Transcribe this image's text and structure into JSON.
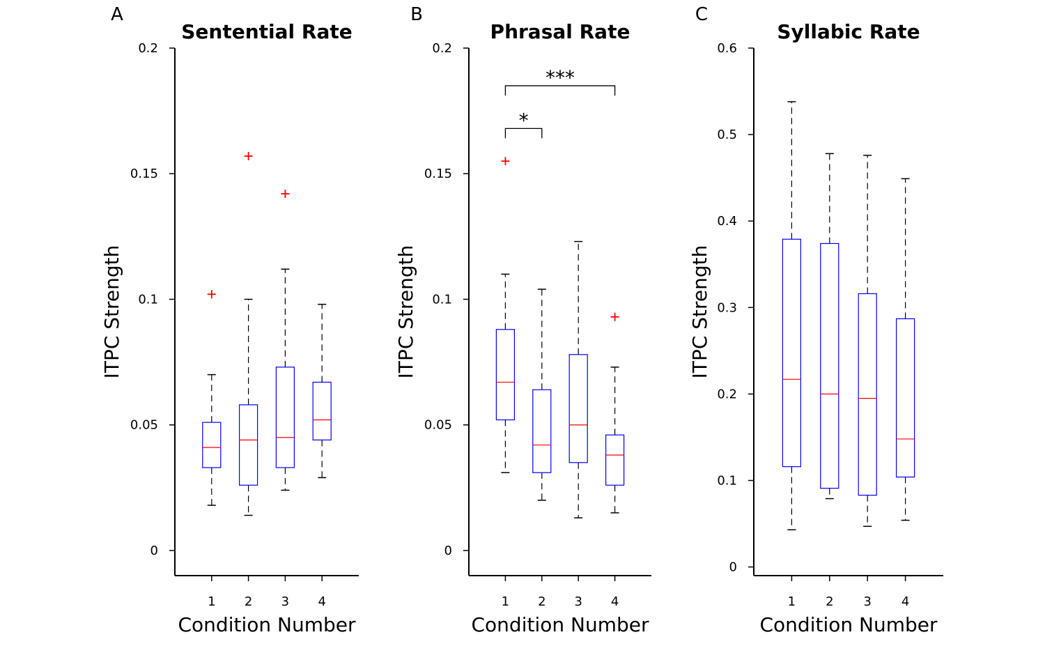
{
  "chart_data": [
    {
      "type": "box",
      "panel_letter": "A",
      "title": "Sentential Rate",
      "xlabel": "Condition Number",
      "ylabel": "ITPC Strength",
      "categories": [
        "1",
        "2",
        "3",
        "4"
      ],
      "ylim": [
        -0.01,
        0.2
      ],
      "yticks": [
        0,
        0.05,
        0.1,
        0.15,
        0.2
      ],
      "ytick_labels": [
        "0",
        "0.05",
        "0.1",
        "0.15",
        "0.2"
      ],
      "boxes": [
        {
          "whisker_low": 0.018,
          "q1": 0.033,
          "median": 0.041,
          "q3": 0.051,
          "whisker_high": 0.07,
          "outliers": [
            0.102
          ]
        },
        {
          "whisker_low": 0.014,
          "q1": 0.026,
          "median": 0.044,
          "q3": 0.058,
          "whisker_high": 0.1,
          "outliers": [
            0.157
          ]
        },
        {
          "whisker_low": 0.024,
          "q1": 0.033,
          "median": 0.045,
          "q3": 0.073,
          "whisker_high": 0.112,
          "outliers": [
            0.142
          ]
        },
        {
          "whisker_low": 0.029,
          "q1": 0.044,
          "median": 0.052,
          "q3": 0.067,
          "whisker_high": 0.098,
          "outliers": []
        }
      ],
      "significance": []
    },
    {
      "type": "box",
      "panel_letter": "B",
      "title": "Phrasal Rate",
      "xlabel": "Condition Number",
      "ylabel": "ITPC Strength",
      "categories": [
        "1",
        "2",
        "3",
        "4"
      ],
      "ylim": [
        -0.01,
        0.2
      ],
      "yticks": [
        0,
        0.05,
        0.1,
        0.15,
        0.2
      ],
      "ytick_labels": [
        "0",
        "0.05",
        "0.1",
        "0.15",
        "0.2"
      ],
      "boxes": [
        {
          "whisker_low": 0.031,
          "q1": 0.052,
          "median": 0.067,
          "q3": 0.088,
          "whisker_high": 0.11,
          "outliers": [
            0.155
          ]
        },
        {
          "whisker_low": 0.02,
          "q1": 0.031,
          "median": 0.042,
          "q3": 0.064,
          "whisker_high": 0.104,
          "outliers": []
        },
        {
          "whisker_low": 0.013,
          "q1": 0.035,
          "median": 0.05,
          "q3": 0.078,
          "whisker_high": 0.123,
          "outliers": []
        },
        {
          "whisker_low": 0.015,
          "q1": 0.026,
          "median": 0.038,
          "q3": 0.046,
          "whisker_high": 0.073,
          "outliers": [
            0.093
          ]
        }
      ],
      "significance": [
        {
          "from": 1,
          "to": 4,
          "label": "***",
          "y": 0.185
        },
        {
          "from": 1,
          "to": 2,
          "label": "*",
          "y": 0.168
        }
      ]
    },
    {
      "type": "box",
      "panel_letter": "C",
      "title": "Syllabic Rate",
      "xlabel": "Condition Number",
      "ylabel": "ITPC Strength",
      "categories": [
        "1",
        "2",
        "3",
        "4"
      ],
      "ylim": [
        -0.01,
        0.6
      ],
      "yticks": [
        0,
        0.1,
        0.2,
        0.3,
        0.4,
        0.5,
        0.6
      ],
      "ytick_labels": [
        "0",
        "0.1",
        "0.2",
        "0.3",
        "0.4",
        "0.5",
        "0.6"
      ],
      "boxes": [
        {
          "whisker_low": 0.043,
          "q1": 0.116,
          "median": 0.217,
          "q3": 0.379,
          "whisker_high": 0.538,
          "outliers": []
        },
        {
          "whisker_low": 0.079,
          "q1": 0.091,
          "median": 0.2,
          "q3": 0.374,
          "whisker_high": 0.478,
          "outliers": []
        },
        {
          "whisker_low": 0.047,
          "q1": 0.083,
          "median": 0.195,
          "q3": 0.316,
          "whisker_high": 0.476,
          "outliers": []
        },
        {
          "whisker_low": 0.054,
          "q1": 0.104,
          "median": 0.148,
          "q3": 0.287,
          "whisker_high": 0.449,
          "outliers": []
        }
      ],
      "significance": []
    }
  ],
  "colors": {
    "box": "#0000ff",
    "median": "#ff0000",
    "outlier": "#ff0000",
    "whisker": "#000000",
    "axis": "#000000"
  }
}
